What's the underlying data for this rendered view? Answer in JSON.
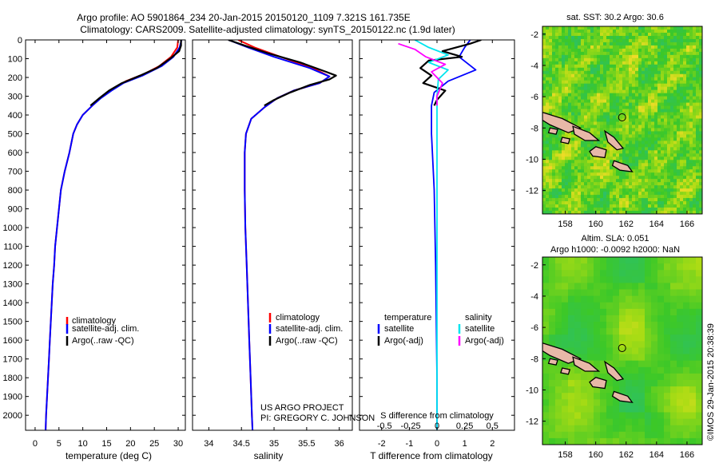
{
  "figure": {
    "title_line1": "Argo profile: AO 5901864_234 20-Jan-2015 20150120_1109 7.321S 161.735E",
    "title_line2": "Climatology: CARS2009. Satellite-adjusted climatology: synTS_20150122.nc (1.9d later)",
    "credit_line1": "US ARGO PROJECT",
    "credit_line2": "PI: GREGORY C. JOHNSON",
    "watermark": "©IMOS 29-Jan-2015 20:38:39"
  },
  "colors": {
    "climatology": "#ff0000",
    "satellite": "#0000ff",
    "argo": "#000000",
    "satellite_s": "#00e5ee",
    "argo_s": "#ff00ff",
    "land": "#e8b8a8"
  },
  "chart_data": [
    {
      "type": "line",
      "panel": "temperature",
      "xlabel": "temperature (deg C)",
      "ylabel": "",
      "xlim": [
        -2,
        31.5
      ],
      "ylim": [
        2080,
        0
      ],
      "xticks": [
        0,
        5,
        10,
        15,
        20,
        25,
        30
      ],
      "yticks": [
        0,
        100,
        200,
        300,
        400,
        500,
        600,
        700,
        800,
        900,
        1000,
        1100,
        1200,
        1300,
        1400,
        1500,
        1600,
        1700,
        1800,
        1900,
        2000
      ],
      "legend": [
        "climatology",
        "satellite-adj. clim.",
        "Argo(..raw -QC)"
      ],
      "series": [
        {
          "name": "climatology",
          "points": [
            [
              30.0,
              0
            ],
            [
              29.8,
              40
            ],
            [
              28.5,
              90
            ],
            [
              26,
              140
            ],
            [
              23,
              180
            ],
            [
              19,
              220
            ],
            [
              16.5,
              260
            ],
            [
              14,
              300
            ],
            [
              12,
              350
            ],
            [
              10,
              400
            ],
            [
              8.8,
              450
            ],
            [
              8,
              500
            ],
            [
              7.2,
              600
            ],
            [
              6.2,
              700
            ],
            [
              5.4,
              800
            ],
            [
              5,
              900
            ],
            [
              4.6,
              1000
            ],
            [
              4.2,
              1100
            ],
            [
              4,
              1200
            ],
            [
              3.7,
              1300
            ],
            [
              3.5,
              1400
            ],
            [
              3.3,
              1500
            ],
            [
              3.1,
              1600
            ],
            [
              2.9,
              1700
            ],
            [
              2.7,
              1800
            ],
            [
              2.5,
              1900
            ],
            [
              2.3,
              2000
            ],
            [
              2.2,
              2080
            ]
          ]
        },
        {
          "name": "satellite-adj. clim.",
          "points": [
            [
              30.7,
              0
            ],
            [
              30.3,
              40
            ],
            [
              29,
              90
            ],
            [
              26.5,
              140
            ],
            [
              22.5,
              190
            ],
            [
              18.5,
              230
            ],
            [
              16,
              270
            ],
            [
              13.8,
              310
            ],
            [
              12,
              350
            ],
            [
              10,
              400
            ],
            [
              8.8,
              450
            ],
            [
              8,
              500
            ],
            [
              7.2,
              600
            ],
            [
              6.2,
              700
            ],
            [
              5.4,
              800
            ],
            [
              5,
              900
            ],
            [
              4.6,
              1000
            ],
            [
              4.2,
              1100
            ],
            [
              4,
              1200
            ],
            [
              3.7,
              1300
            ],
            [
              3.5,
              1400
            ],
            [
              3.3,
              1500
            ],
            [
              3.1,
              1600
            ],
            [
              2.9,
              1700
            ],
            [
              2.7,
              1800
            ],
            [
              2.5,
              1900
            ],
            [
              2.3,
              2000
            ],
            [
              2.2,
              2080
            ]
          ]
        },
        {
          "name": "Argo(..raw -QC)",
          "points": [
            [
              30.6,
              0
            ],
            [
              30.6,
              30
            ],
            [
              30.2,
              60
            ],
            [
              28.3,
              100
            ],
            [
              25.5,
              150
            ],
            [
              22,
              190
            ],
            [
              18.2,
              230
            ],
            [
              15.5,
              270
            ],
            [
              13.5,
              310
            ],
            [
              11.6,
              350
            ]
          ]
        }
      ]
    },
    {
      "type": "line",
      "panel": "salinity",
      "xlabel": "salinity",
      "ylabel": "",
      "xlim": [
        33.75,
        36.2
      ],
      "ylim": [
        2080,
        0
      ],
      "xticks": [
        34,
        34.5,
        35,
        35.5,
        36
      ],
      "legend": [
        "climatology",
        "satellite-adj. clim.",
        "Argo(..raw -QC)"
      ],
      "series": [
        {
          "name": "climatology",
          "points": [
            [
              34.45,
              0
            ],
            [
              34.7,
              40
            ],
            [
              35.1,
              90
            ],
            [
              35.6,
              150
            ],
            [
              35.85,
              195
            ],
            [
              35.7,
              230
            ],
            [
              35.3,
              270
            ],
            [
              35.05,
              310
            ],
            [
              34.85,
              360
            ],
            [
              34.65,
              420
            ],
            [
              34.57,
              500
            ],
            [
              34.55,
              600
            ],
            [
              34.55,
              800
            ],
            [
              34.56,
              1000
            ],
            [
              34.58,
              1200
            ],
            [
              34.6,
              1400
            ],
            [
              34.62,
              1600
            ],
            [
              34.64,
              1800
            ],
            [
              34.66,
              2000
            ],
            [
              34.67,
              2080
            ]
          ]
        },
        {
          "name": "satellite-adj. clim.",
          "points": [
            [
              34.3,
              0
            ],
            [
              34.6,
              40
            ],
            [
              35.0,
              90
            ],
            [
              35.55,
              150
            ],
            [
              35.85,
              195
            ],
            [
              35.7,
              230
            ],
            [
              35.3,
              270
            ],
            [
              35.05,
              310
            ],
            [
              34.85,
              360
            ],
            [
              34.65,
              420
            ],
            [
              34.57,
              500
            ],
            [
              34.55,
              600
            ],
            [
              34.55,
              800
            ],
            [
              34.56,
              1000
            ],
            [
              34.58,
              1200
            ],
            [
              34.6,
              1400
            ],
            [
              34.62,
              1600
            ],
            [
              34.64,
              1800
            ],
            [
              34.66,
              2000
            ],
            [
              34.67,
              2080
            ]
          ]
        },
        {
          "name": "Argo(..raw -QC)",
          "points": [
            [
              34.3,
              0
            ],
            [
              34.55,
              30
            ],
            [
              34.9,
              70
            ],
            [
              35.4,
              120
            ],
            [
              35.8,
              170
            ],
            [
              35.95,
              190
            ],
            [
              35.85,
              210
            ],
            [
              35.55,
              240
            ],
            [
              35.25,
              280
            ],
            [
              35.0,
              320
            ],
            [
              34.85,
              350
            ]
          ]
        }
      ]
    },
    {
      "type": "line",
      "panel": "differences",
      "xlabel": "T difference from climatology",
      "xlabel_top": "S difference from climatology",
      "ylabel": "",
      "xlim": [
        -2.8,
        2.8
      ],
      "ylim": [
        2080,
        0
      ],
      "xticks": [
        -2,
        -1,
        0,
        1,
        2
      ],
      "xticks_s": [
        "-0.5",
        "-0.25",
        "0",
        "0.25",
        "0.5"
      ],
      "legend_temperature_title": "temperature",
      "legend_salinity_title": "salinity",
      "legend_temperature": [
        "satellite",
        "Argo(-adj)"
      ],
      "legend_salinity": [
        "satellite",
        "Argo(-adj)"
      ],
      "series": [
        {
          "name": "T satellite",
          "points": [
            [
              1.2,
              0
            ],
            [
              1.0,
              40
            ],
            [
              0.8,
              90
            ],
            [
              1.4,
              160
            ],
            [
              0.4,
              220
            ],
            [
              -0.1,
              280
            ],
            [
              -0.2,
              350
            ],
            [
              -0.2,
              500
            ],
            [
              -0.1,
              800
            ],
            [
              -0.05,
              1200
            ],
            [
              0,
              1800
            ],
            [
              0,
              2080
            ]
          ]
        },
        {
          "name": "T Argo(-adj)",
          "points": [
            [
              1.6,
              0
            ],
            [
              1.2,
              20
            ],
            [
              0.2,
              60
            ],
            [
              0.9,
              90
            ],
            [
              -0.3,
              110
            ],
            [
              -0.6,
              150
            ],
            [
              -0.2,
              190
            ],
            [
              -0.5,
              230
            ],
            [
              0.3,
              270
            ],
            [
              0.0,
              320
            ],
            [
              -0.1,
              350
            ]
          ]
        },
        {
          "name": "S satellite",
          "points": [
            [
              -0.8,
              0
            ],
            [
              -0.3,
              40
            ],
            [
              0.4,
              80
            ],
            [
              -0.3,
              120
            ],
            [
              0.4,
              160
            ],
            [
              0.05,
              210
            ],
            [
              0,
              300
            ],
            [
              0,
              600
            ],
            [
              0,
              1200
            ],
            [
              0,
              2080
            ]
          ]
        },
        {
          "name": "S Argo(-adj)",
          "points": [
            [
              -1.4,
              20
            ],
            [
              -0.8,
              50
            ],
            [
              -0.4,
              90
            ],
            [
              0.3,
              130
            ],
            [
              -0.2,
              170
            ],
            [
              0.2,
              230
            ],
            [
              0.0,
              300
            ],
            [
              0.0,
              350
            ]
          ]
        }
      ]
    },
    {
      "type": "heatmap",
      "panel": "sst_map",
      "title": "sat. SST: 30.2 Argo: 30.6",
      "xlim": [
        156.5,
        167
      ],
      "ylim": [
        -13.5,
        -1.5
      ],
      "xticks": [
        158,
        160,
        162,
        164,
        166
      ],
      "yticks": [
        -2,
        -4,
        -6,
        -8,
        -10,
        -12
      ],
      "marker": [
        161.735,
        -7.321
      ]
    },
    {
      "type": "heatmap",
      "panel": "sla_map",
      "title_line1": "Altim. SLA: 0.051",
      "title_line2": "Argo h1000: -0.0092 h2000: NaN",
      "xlim": [
        156.5,
        167
      ],
      "ylim": [
        -13.5,
        -1.5
      ],
      "xticks": [
        158,
        160,
        162,
        164,
        166
      ],
      "yticks": [
        -2,
        -4,
        -6,
        -8,
        -10,
        -12
      ],
      "marker": [
        161.735,
        -7.321
      ]
    }
  ]
}
